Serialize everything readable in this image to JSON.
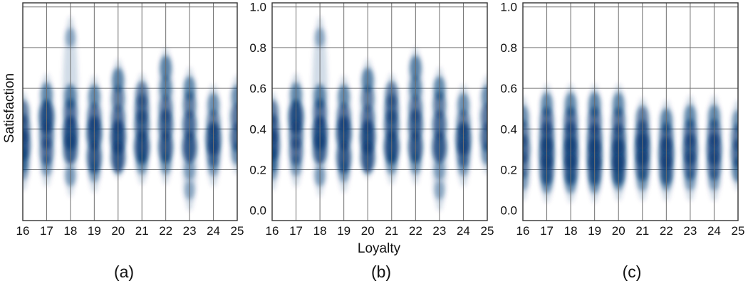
{
  "figure": {
    "ylabel": "Satisfaction",
    "xlabel": "Loyalty"
  },
  "chart_data": [
    {
      "type": "scatter",
      "panel_label": "(a)",
      "x_ticks": [
        "16",
        "17",
        "18",
        "19",
        "20",
        "21",
        "22",
        "23",
        "24",
        "25"
      ],
      "y_ticks": [],
      "xlim": [
        16,
        25
      ],
      "ylim": [
        -0.05,
        1.02
      ],
      "gridlines_y": [
        0.2,
        0.4,
        0.6,
        0.8,
        1.0
      ],
      "color": "#0b3e78",
      "columns": [
        {
          "x": 16,
          "blobs": [
            [
              0.32,
              0.95
            ],
            [
              0.4,
              0.8
            ],
            [
              0.48,
              0.6
            ],
            [
              0.25,
              0.55
            ],
            [
              0.2,
              0.35
            ]
          ]
        },
        {
          "x": 17,
          "blobs": [
            [
              0.46,
              1.0
            ],
            [
              0.37,
              0.75
            ],
            [
              0.29,
              0.7
            ],
            [
              0.57,
              0.5
            ],
            [
              0.22,
              0.35
            ]
          ]
        },
        {
          "x": 18,
          "blobs": [
            [
              0.38,
              1.0
            ],
            [
              0.3,
              0.85
            ],
            [
              0.48,
              0.7
            ],
            [
              0.56,
              0.55
            ],
            [
              0.17,
              0.35
            ],
            [
              0.85,
              0.25
            ]
          ]
        },
        {
          "x": 19,
          "blobs": [
            [
              0.38,
              1.0
            ],
            [
              0.26,
              0.9
            ],
            [
              0.46,
              0.7
            ],
            [
              0.56,
              0.5
            ],
            [
              0.19,
              0.35
            ]
          ]
        },
        {
          "x": 20,
          "blobs": [
            [
              0.36,
              1.0
            ],
            [
              0.26,
              0.9
            ],
            [
              0.45,
              0.7
            ],
            [
              0.55,
              0.6
            ],
            [
              0.64,
              0.55
            ]
          ]
        },
        {
          "x": 21,
          "blobs": [
            [
              0.31,
              1.0
            ],
            [
              0.42,
              0.85
            ],
            [
              0.5,
              0.75
            ],
            [
              0.57,
              0.6
            ],
            [
              0.23,
              0.4
            ]
          ]
        },
        {
          "x": 22,
          "blobs": [
            [
              0.31,
              0.9
            ],
            [
              0.42,
              0.85
            ],
            [
              0.5,
              0.65
            ],
            [
              0.6,
              0.55
            ],
            [
              0.7,
              0.55
            ],
            [
              0.23,
              0.4
            ]
          ]
        },
        {
          "x": 23,
          "blobs": [
            [
              0.31,
              0.9
            ],
            [
              0.42,
              0.75
            ],
            [
              0.52,
              0.6
            ],
            [
              0.6,
              0.5
            ],
            [
              0.2,
              0.35
            ],
            [
              0.1,
              0.25
            ]
          ]
        },
        {
          "x": 24,
          "blobs": [
            [
              0.35,
              1.0
            ],
            [
              0.28,
              0.65
            ],
            [
              0.43,
              0.6
            ],
            [
              0.52,
              0.45
            ],
            [
              0.22,
              0.35
            ]
          ]
        },
        {
          "x": 25,
          "blobs": [
            [
              0.36,
              0.75
            ],
            [
              0.46,
              0.65
            ],
            [
              0.28,
              0.45
            ],
            [
              0.56,
              0.45
            ]
          ]
        }
      ]
    },
    {
      "type": "scatter",
      "panel_label": "(b)",
      "x_ticks": [
        "16",
        "17",
        "18",
        "19",
        "20",
        "21",
        "22",
        "23",
        "24",
        "25"
      ],
      "y_ticks": [
        "1.0",
        "0.8",
        "0.6",
        "0.4",
        "0.2",
        "0.0"
      ],
      "xlim": [
        16,
        25
      ],
      "ylim": [
        -0.05,
        1.02
      ],
      "gridlines_y": [
        0.2,
        0.4,
        0.6,
        0.8,
        1.0
      ],
      "color": "#0b3e78",
      "columns": [
        {
          "x": 16,
          "blobs": [
            [
              0.32,
              0.95
            ],
            [
              0.4,
              0.8
            ],
            [
              0.48,
              0.6
            ],
            [
              0.25,
              0.55
            ],
            [
              0.2,
              0.35
            ]
          ]
        },
        {
          "x": 17,
          "blobs": [
            [
              0.46,
              1.0
            ],
            [
              0.37,
              0.75
            ],
            [
              0.29,
              0.7
            ],
            [
              0.57,
              0.5
            ],
            [
              0.22,
              0.35
            ]
          ]
        },
        {
          "x": 18,
          "blobs": [
            [
              0.38,
              1.0
            ],
            [
              0.3,
              0.85
            ],
            [
              0.48,
              0.7
            ],
            [
              0.56,
              0.55
            ],
            [
              0.17,
              0.35
            ],
            [
              0.85,
              0.25
            ]
          ]
        },
        {
          "x": 19,
          "blobs": [
            [
              0.38,
              1.0
            ],
            [
              0.26,
              0.9
            ],
            [
              0.46,
              0.7
            ],
            [
              0.56,
              0.5
            ],
            [
              0.19,
              0.35
            ]
          ]
        },
        {
          "x": 20,
          "blobs": [
            [
              0.36,
              1.0
            ],
            [
              0.26,
              0.9
            ],
            [
              0.45,
              0.7
            ],
            [
              0.55,
              0.6
            ],
            [
              0.64,
              0.55
            ]
          ]
        },
        {
          "x": 21,
          "blobs": [
            [
              0.31,
              1.0
            ],
            [
              0.42,
              0.85
            ],
            [
              0.5,
              0.75
            ],
            [
              0.57,
              0.6
            ],
            [
              0.23,
              0.4
            ]
          ]
        },
        {
          "x": 22,
          "blobs": [
            [
              0.31,
              0.9
            ],
            [
              0.42,
              0.85
            ],
            [
              0.5,
              0.65
            ],
            [
              0.6,
              0.55
            ],
            [
              0.7,
              0.55
            ],
            [
              0.23,
              0.4
            ]
          ]
        },
        {
          "x": 23,
          "blobs": [
            [
              0.31,
              0.9
            ],
            [
              0.42,
              0.75
            ],
            [
              0.52,
              0.6
            ],
            [
              0.6,
              0.5
            ],
            [
              0.2,
              0.35
            ],
            [
              0.1,
              0.25
            ]
          ]
        },
        {
          "x": 24,
          "blobs": [
            [
              0.35,
              1.0
            ],
            [
              0.28,
              0.65
            ],
            [
              0.43,
              0.6
            ],
            [
              0.52,
              0.45
            ],
            [
              0.22,
              0.35
            ]
          ]
        },
        {
          "x": 25,
          "blobs": [
            [
              0.36,
              0.75
            ],
            [
              0.46,
              0.65
            ],
            [
              0.28,
              0.45
            ],
            [
              0.56,
              0.45
            ]
          ]
        }
      ]
    },
    {
      "type": "scatter",
      "panel_label": "(c)",
      "x_ticks": [
        "16",
        "17",
        "18",
        "19",
        "20",
        "21",
        "22",
        "23",
        "24",
        "25"
      ],
      "y_ticks": [
        "1.0",
        "0.8",
        "0.6",
        "0.4",
        "0.2",
        "0.0"
      ],
      "xlim": [
        16,
        25
      ],
      "ylim": [
        -0.05,
        1.02
      ],
      "gridlines_y": [
        0.2,
        0.4,
        0.6,
        0.8,
        1.0
      ],
      "color": "#0b3e78",
      "columns": [
        {
          "x": 16,
          "blobs": [
            [
              0.3,
              0.8
            ],
            [
              0.22,
              0.6
            ],
            [
              0.38,
              0.6
            ],
            [
              0.46,
              0.45
            ],
            [
              0.15,
              0.35
            ]
          ]
        },
        {
          "x": 17,
          "blobs": [
            [
              0.28,
              1.0
            ],
            [
              0.2,
              0.85
            ],
            [
              0.36,
              0.85
            ],
            [
              0.44,
              0.7
            ],
            [
              0.52,
              0.5
            ],
            [
              0.14,
              0.45
            ]
          ]
        },
        {
          "x": 18,
          "blobs": [
            [
              0.28,
              1.0
            ],
            [
              0.2,
              0.85
            ],
            [
              0.36,
              0.85
            ],
            [
              0.44,
              0.7
            ],
            [
              0.52,
              0.5
            ],
            [
              0.14,
              0.45
            ]
          ]
        },
        {
          "x": 19,
          "blobs": [
            [
              0.27,
              1.0
            ],
            [
              0.2,
              0.85
            ],
            [
              0.35,
              0.9
            ],
            [
              0.44,
              0.7
            ],
            [
              0.52,
              0.55
            ],
            [
              0.14,
              0.45
            ]
          ]
        },
        {
          "x": 20,
          "blobs": [
            [
              0.27,
              1.0
            ],
            [
              0.2,
              0.85
            ],
            [
              0.35,
              0.85
            ],
            [
              0.44,
              0.65
            ],
            [
              0.52,
              0.5
            ],
            [
              0.15,
              0.4
            ]
          ]
        },
        {
          "x": 21,
          "blobs": [
            [
              0.3,
              1.0
            ],
            [
              0.22,
              0.85
            ],
            [
              0.37,
              0.8
            ],
            [
              0.45,
              0.6
            ],
            [
              0.15,
              0.4
            ]
          ]
        },
        {
          "x": 22,
          "blobs": [
            [
              0.28,
              1.0
            ],
            [
              0.2,
              0.8
            ],
            [
              0.36,
              0.75
            ],
            [
              0.44,
              0.55
            ],
            [
              0.15,
              0.4
            ]
          ]
        },
        {
          "x": 23,
          "blobs": [
            [
              0.3,
              0.9
            ],
            [
              0.22,
              0.75
            ],
            [
              0.38,
              0.7
            ],
            [
              0.46,
              0.5
            ],
            [
              0.15,
              0.35
            ]
          ]
        },
        {
          "x": 24,
          "blobs": [
            [
              0.3,
              0.95
            ],
            [
              0.22,
              0.75
            ],
            [
              0.38,
              0.7
            ],
            [
              0.46,
              0.5
            ],
            [
              0.15,
              0.35
            ]
          ]
        },
        {
          "x": 25,
          "blobs": [
            [
              0.28,
              0.75
            ],
            [
              0.36,
              0.65
            ],
            [
              0.2,
              0.55
            ],
            [
              0.44,
              0.4
            ]
          ]
        }
      ]
    }
  ]
}
